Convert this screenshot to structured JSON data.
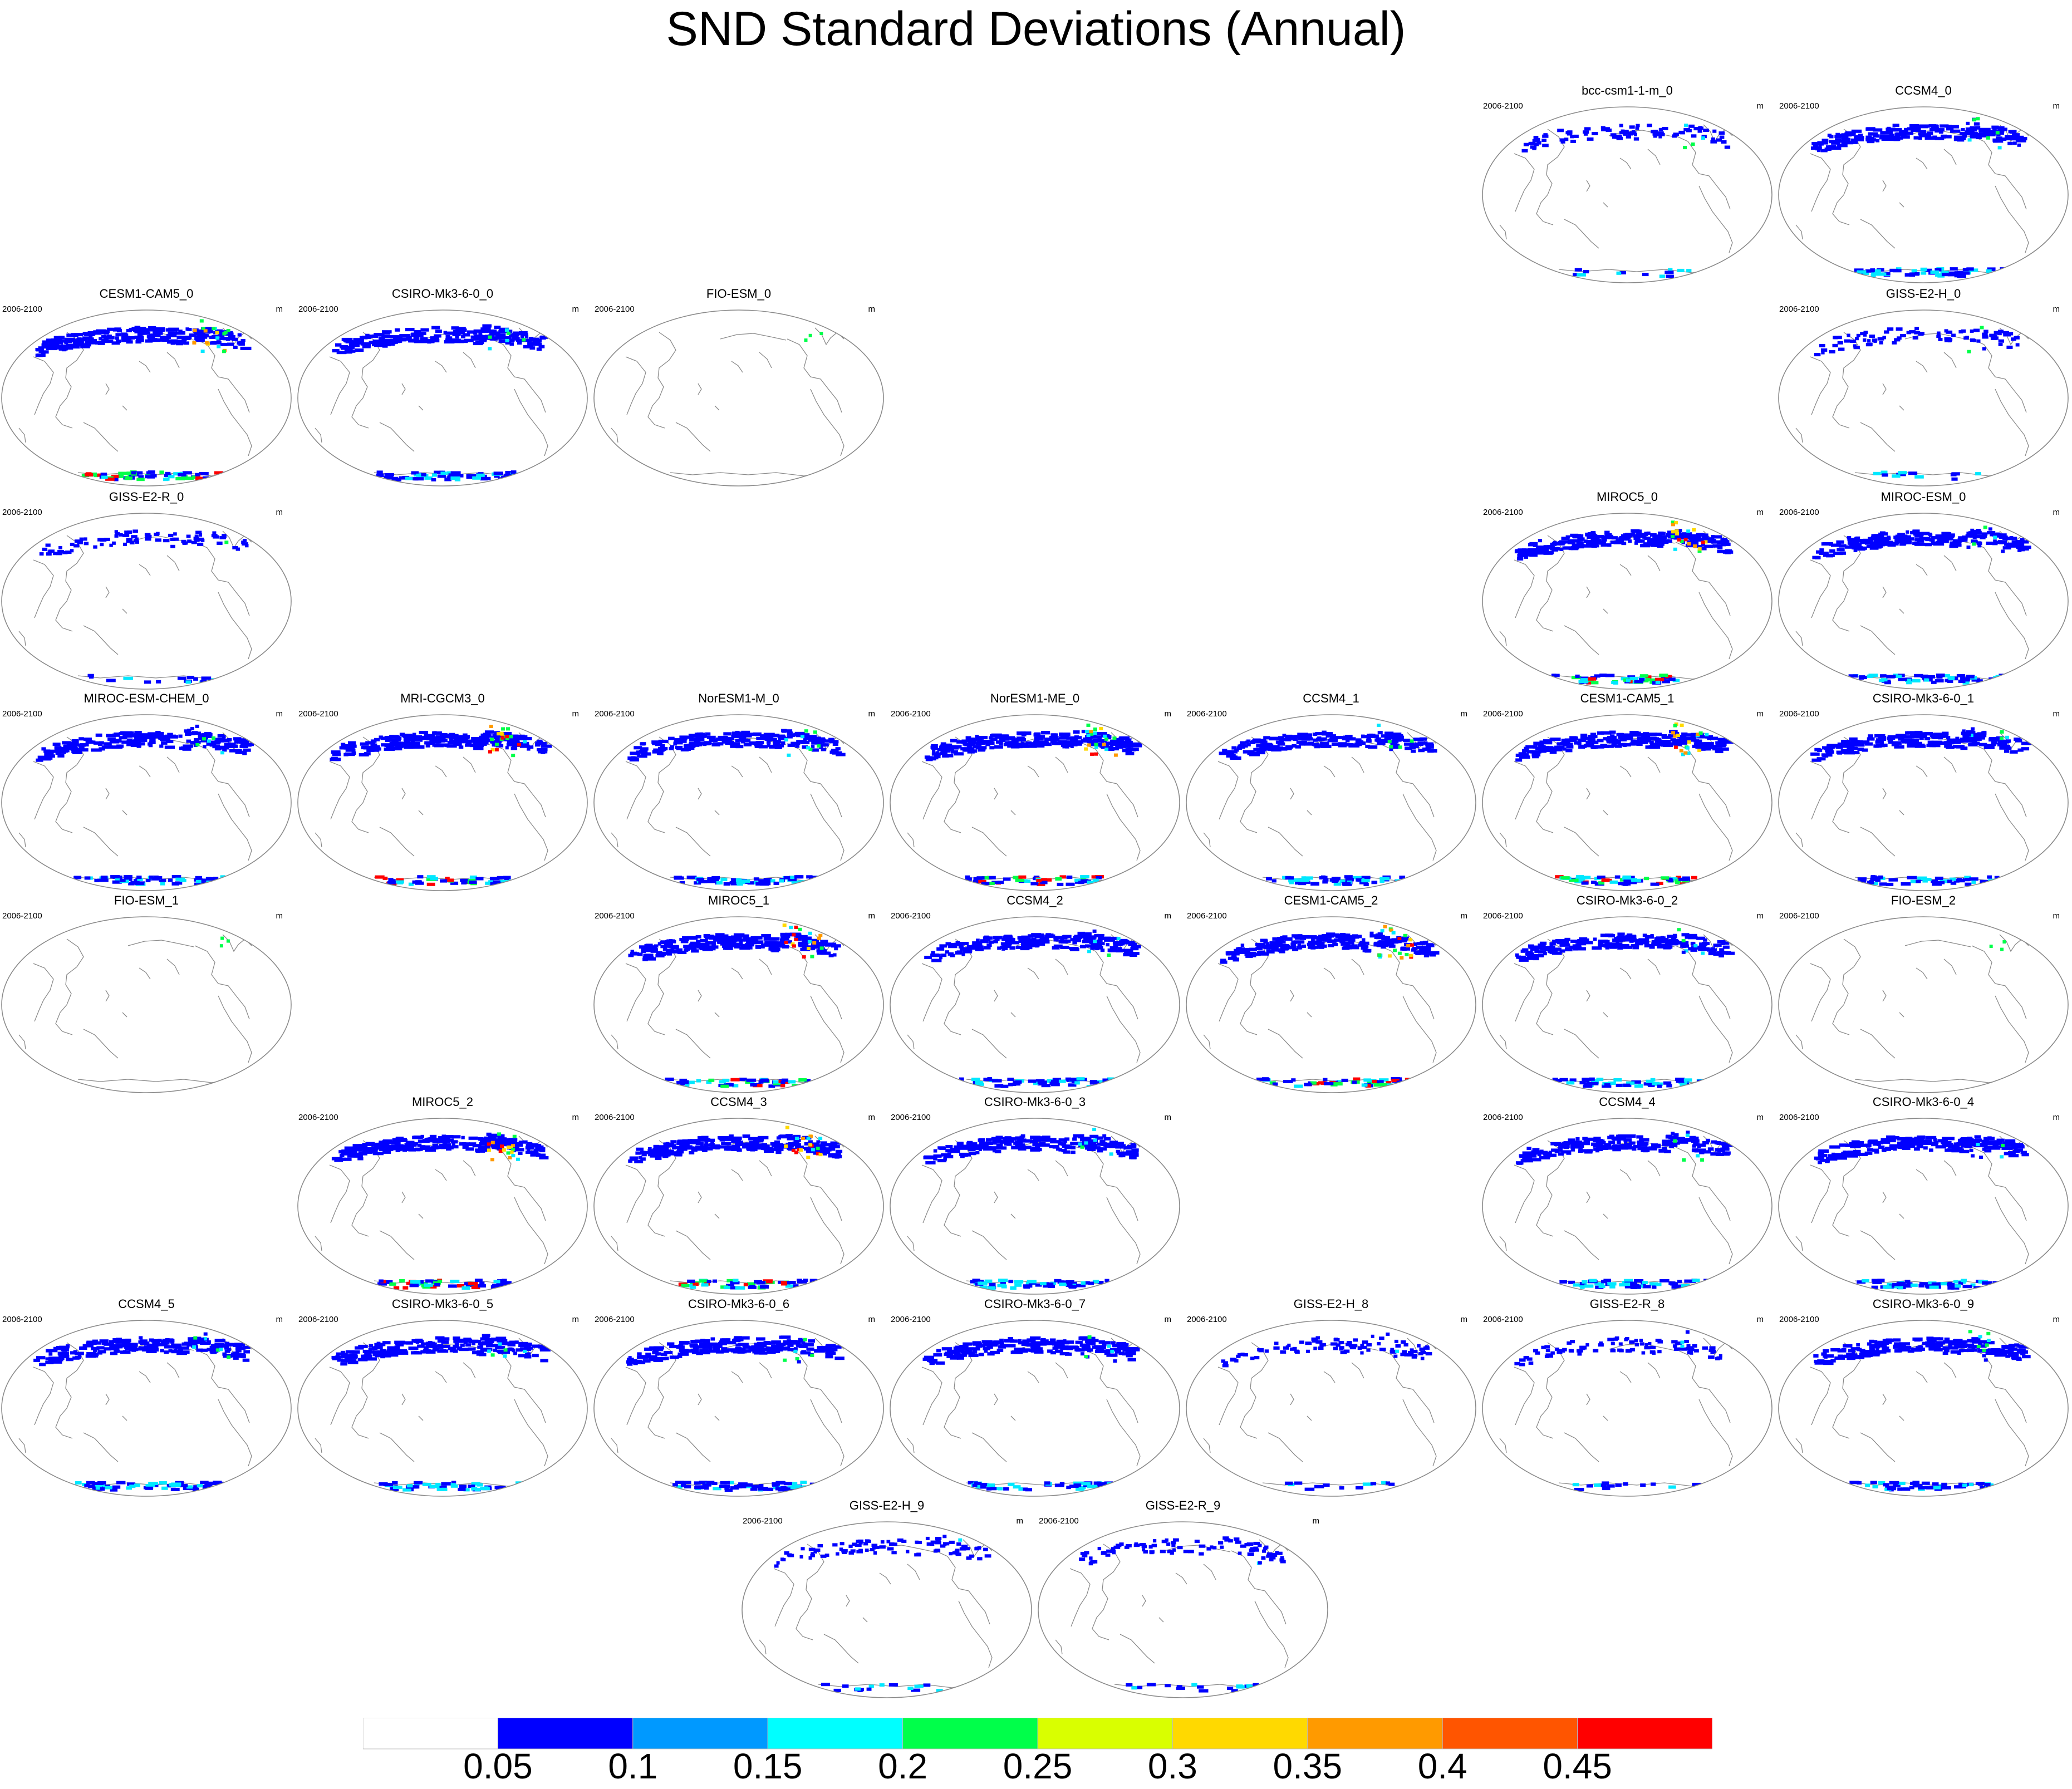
{
  "title": "SND Standard Deviations (Annual)",
  "period": "2006-2100",
  "units": "m",
  "colors": {
    "blue": "#0000ff",
    "cyan": "#00e8ff",
    "green": "#00ff4a",
    "yellow": "#ffd900",
    "orange": "#ff9a00",
    "red": "#ff0000",
    "coast": "#8a8a8a"
  },
  "colorbar": {
    "labels": [
      "0.05",
      "0.1",
      "0.15",
      "0.2",
      "0.25",
      "0.3",
      "0.35",
      "0.4",
      "0.45"
    ],
    "colors": [
      "#ffffff",
      "#0000ff",
      "#0099ff",
      "#00ffff",
      "#00ff4a",
      "#d9ff00",
      "#ffd900",
      "#ff9a00",
      "#ff5500",
      "#ff0000"
    ]
  },
  "panels": [
    {
      "name": "bcc-csm1-1-m_0",
      "row": 0,
      "col": 5,
      "intensity": "low"
    },
    {
      "name": "CCSM4_0",
      "row": 0,
      "col": 6,
      "intensity": "medium"
    },
    {
      "name": "CESM1-CAM5_0",
      "row": 1,
      "col": 0,
      "intensity": "high"
    },
    {
      "name": "CSIRO-Mk3-6-0_0",
      "row": 1,
      "col": 1,
      "intensity": "medium"
    },
    {
      "name": "FIO-ESM_0",
      "row": 1,
      "col": 2,
      "intensity": "none"
    },
    {
      "name": "GISS-E2-H_0",
      "row": 1,
      "col": 6,
      "intensity": "low"
    },
    {
      "name": "GISS-E2-R_0",
      "row": 2,
      "col": 0,
      "intensity": "low"
    },
    {
      "name": "MIROC5_0",
      "row": 2,
      "col": 5,
      "intensity": "high"
    },
    {
      "name": "MIROC-ESM_0",
      "row": 2,
      "col": 6,
      "intensity": "medium"
    },
    {
      "name": "MIROC-ESM-CHEM_0",
      "row": 3,
      "col": 0,
      "intensity": "medium"
    },
    {
      "name": "MRI-CGCM3_0",
      "row": 3,
      "col": 1,
      "intensity": "high"
    },
    {
      "name": "NorESM1-M_0",
      "row": 3,
      "col": 2,
      "intensity": "medium"
    },
    {
      "name": "NorESM1-ME_0",
      "row": 3,
      "col": 3,
      "intensity": "high"
    },
    {
      "name": "CCSM4_1",
      "row": 3,
      "col": 4,
      "intensity": "medium"
    },
    {
      "name": "CESM1-CAM5_1",
      "row": 3,
      "col": 5,
      "intensity": "high"
    },
    {
      "name": "CSIRO-Mk3-6-0_1",
      "row": 3,
      "col": 6,
      "intensity": "medium"
    },
    {
      "name": "FIO-ESM_1",
      "row": 4,
      "col": 0,
      "intensity": "none"
    },
    {
      "name": "MIROC5_1",
      "row": 4,
      "col": 2,
      "intensity": "high"
    },
    {
      "name": "CCSM4_2",
      "row": 4,
      "col": 3,
      "intensity": "medium"
    },
    {
      "name": "CESM1-CAM5_2",
      "row": 4,
      "col": 4,
      "intensity": "high"
    },
    {
      "name": "CSIRO-Mk3-6-0_2",
      "row": 4,
      "col": 5,
      "intensity": "medium"
    },
    {
      "name": "FIO-ESM_2",
      "row": 4,
      "col": 6,
      "intensity": "none"
    },
    {
      "name": "MIROC5_2",
      "row": 5,
      "col": 1,
      "intensity": "high"
    },
    {
      "name": "CCSM4_3",
      "row": 5,
      "col": 2,
      "intensity": "high"
    },
    {
      "name": "CSIRO-Mk3-6-0_3",
      "row": 5,
      "col": 3,
      "intensity": "medium"
    },
    {
      "name": "CCSM4_4",
      "row": 5,
      "col": 5,
      "intensity": "medium"
    },
    {
      "name": "CSIRO-Mk3-6-0_4",
      "row": 5,
      "col": 6,
      "intensity": "medium"
    },
    {
      "name": "CCSM4_5",
      "row": 6,
      "col": 0,
      "intensity": "medium"
    },
    {
      "name": "CSIRO-Mk3-6-0_5",
      "row": 6,
      "col": 1,
      "intensity": "medium"
    },
    {
      "name": "CSIRO-Mk3-6-0_6",
      "row": 6,
      "col": 2,
      "intensity": "medium"
    },
    {
      "name": "CSIRO-Mk3-6-0_7",
      "row": 6,
      "col": 3,
      "intensity": "medium"
    },
    {
      "name": "GISS-E2-H_8",
      "row": 6,
      "col": 4,
      "intensity": "low"
    },
    {
      "name": "GISS-E2-R_8",
      "row": 6,
      "col": 5,
      "intensity": "low"
    },
    {
      "name": "CSIRO-Mk3-6-0_9",
      "row": 6,
      "col": 6,
      "intensity": "medium"
    },
    {
      "name": "GISS-E2-H_9",
      "row": 7,
      "col": 2.5,
      "intensity": "low"
    },
    {
      "name": "GISS-E2-R_9",
      "row": 7,
      "col": 3.5,
      "intensity": "low"
    }
  ]
}
